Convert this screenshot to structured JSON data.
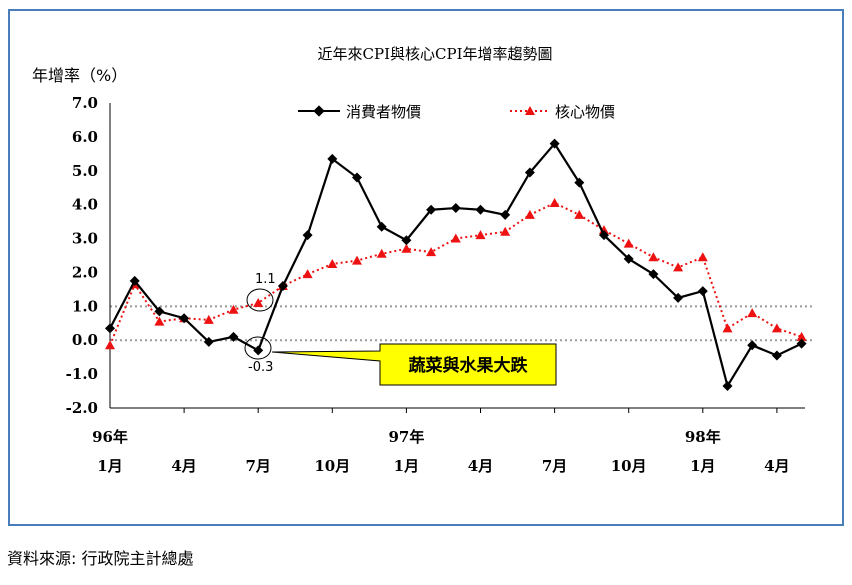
{
  "chart_data": {
    "type": "line",
    "title": "近年來CPI與核心CPI年增率趨勢圖",
    "ylabel": "年增率（%）",
    "ylim": [
      -2.0,
      7.0
    ],
    "yticks": [
      "7.0",
      "6.0",
      "5.0",
      "4.0",
      "3.0",
      "2.0",
      "1.0",
      "0.0",
      "-1.0",
      "-2.0"
    ],
    "x_tick_labels": [
      {
        "index": 0,
        "year": "96年",
        "month": "1月"
      },
      {
        "index": 3,
        "year": "",
        "month": "4月"
      },
      {
        "index": 6,
        "year": "",
        "month": "7月"
      },
      {
        "index": 9,
        "year": "",
        "month": "10月"
      },
      {
        "index": 12,
        "year": "97年",
        "month": "1月"
      },
      {
        "index": 15,
        "year": "",
        "month": "4月"
      },
      {
        "index": 18,
        "year": "",
        "month": "7月"
      },
      {
        "index": 21,
        "year": "",
        "month": "10月"
      },
      {
        "index": 24,
        "year": "98年",
        "month": "1月"
      },
      {
        "index": 27,
        "year": "",
        "month": "4月"
      }
    ],
    "reference_lines": [
      1.0,
      0.0
    ],
    "legend_position": "top",
    "series": [
      {
        "name": "消費者物價",
        "color": "#000000",
        "marker": "diamond",
        "line": "solid",
        "values": [
          0.35,
          1.75,
          0.85,
          0.65,
          -0.05,
          0.1,
          -0.3,
          1.6,
          3.1,
          5.35,
          4.8,
          3.35,
          2.95,
          3.85,
          3.9,
          3.85,
          3.7,
          4.95,
          5.8,
          4.65,
          3.1,
          2.4,
          1.95,
          1.25,
          1.45,
          -1.35,
          -0.15,
          -0.45,
          -0.1
        ]
      },
      {
        "name": "核心物價",
        "color": "#ee1111",
        "marker": "triangle",
        "line": "dotted",
        "values": [
          -0.15,
          1.65,
          0.55,
          0.65,
          0.6,
          0.9,
          1.1,
          1.6,
          1.95,
          2.25,
          2.35,
          2.55,
          2.7,
          2.6,
          3.0,
          3.1,
          3.2,
          3.7,
          4.05,
          3.7,
          3.25,
          2.85,
          2.45,
          2.15,
          2.45,
          0.35,
          0.8,
          0.35,
          0.1
        ]
      }
    ],
    "annotations": [
      {
        "text": "1.1",
        "index": 6,
        "value": 1.1
      },
      {
        "text": "-0.3",
        "index": 6,
        "value": -0.3
      }
    ],
    "callout": "蔬菜與水果大跌"
  },
  "source": "資料來源: 行政院主計總處"
}
